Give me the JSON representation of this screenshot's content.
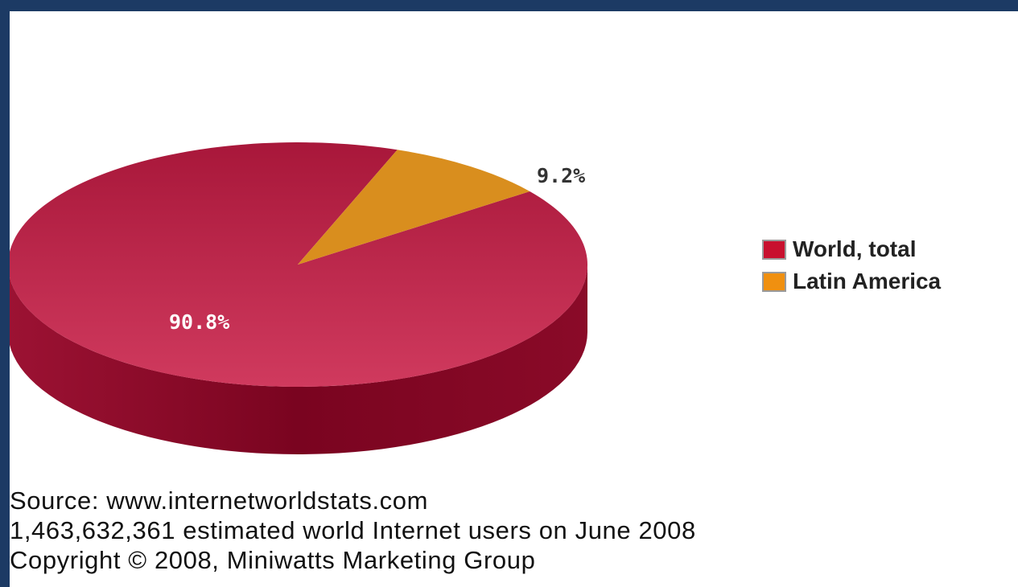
{
  "chart_data": {
    "type": "pie",
    "title": "",
    "three_d": true,
    "legend_position": "right",
    "slices": [
      {
        "name": "World, total",
        "value": 90.8,
        "label": "90.8%",
        "color": "#c8284e",
        "legend_color": "#c8102e"
      },
      {
        "name": "Latin America",
        "value": 9.2,
        "label": "9.2%",
        "color": "#d98e1e",
        "legend_color": "#f09010"
      }
    ]
  },
  "footer": {
    "source": "Source: www.internetworldstats.com",
    "users": "1,463,632,361 estimated world Internet users on June 2008",
    "copyright": "Copyright © 2008, Miniwatts Marketing Group"
  }
}
